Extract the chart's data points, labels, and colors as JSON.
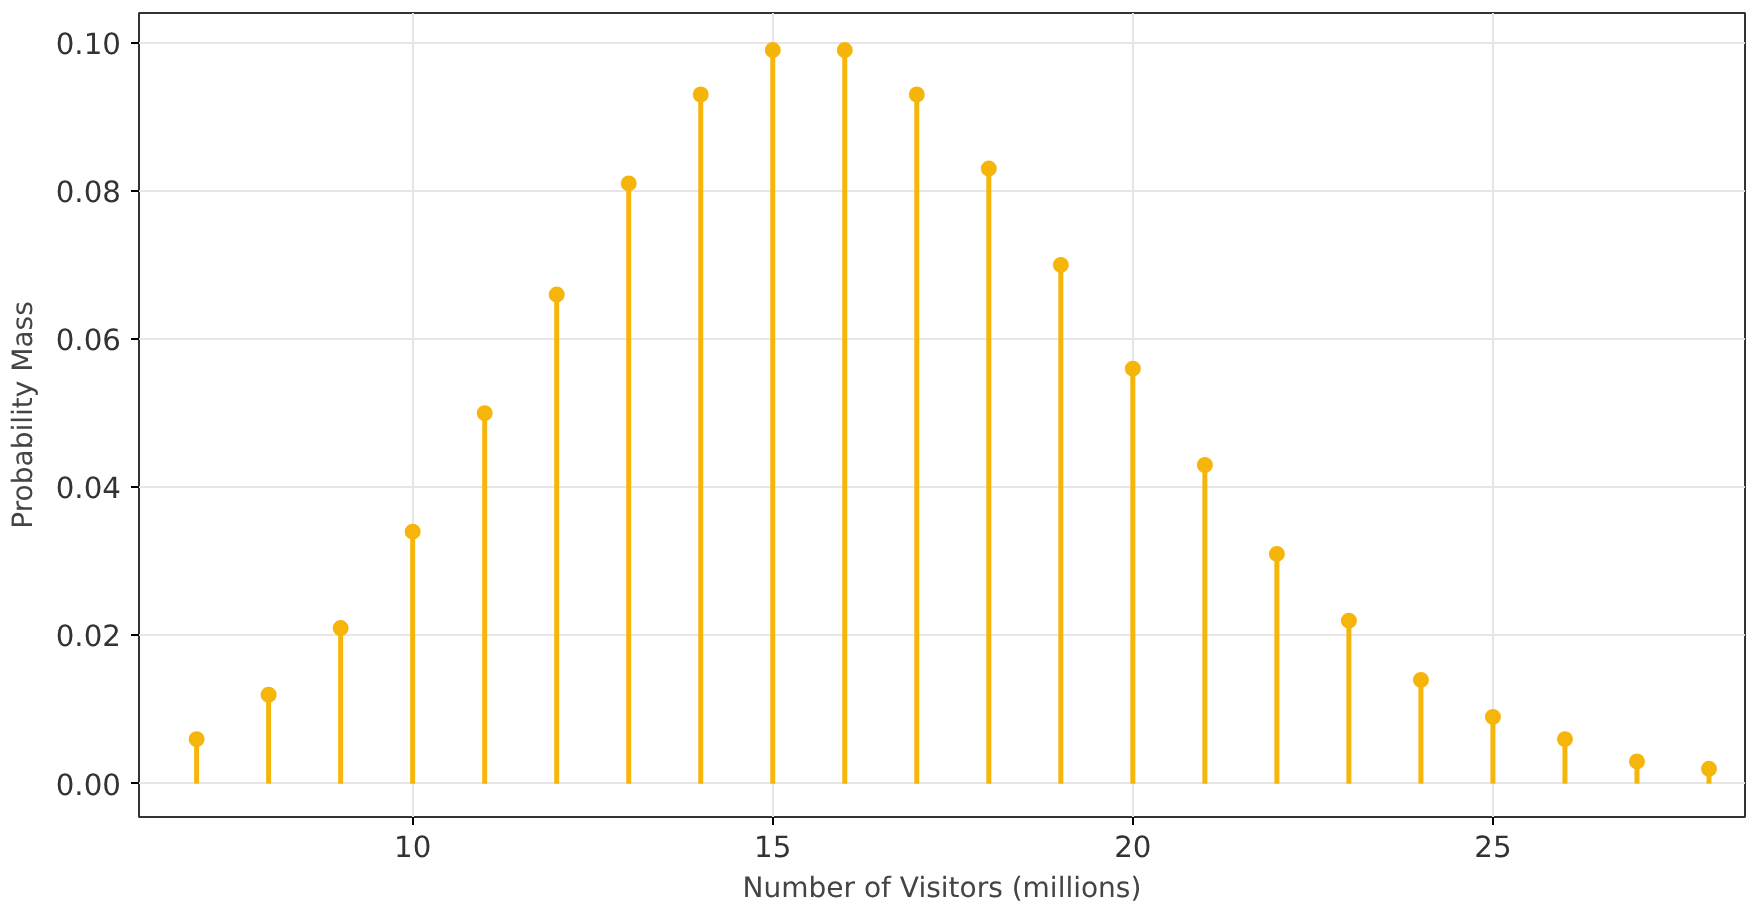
{
  "chart_data": {
    "type": "lollipop",
    "xlabel": "Number of Visitors (millions)",
    "ylabel": "Probability Mass",
    "x": [
      7,
      8,
      9,
      10,
      11,
      12,
      13,
      14,
      15,
      16,
      17,
      18,
      19,
      20,
      21,
      22,
      23,
      24,
      25,
      26,
      27,
      28
    ],
    "series": [
      {
        "color": "#f5b50a",
        "values": [
          0.006,
          0.012,
          0.021,
          0.034,
          0.05,
          0.066,
          0.081,
          0.093,
          0.099,
          0.099,
          0.093,
          0.083,
          0.07,
          0.056,
          0.043,
          0.031,
          0.022,
          0.014,
          0.009,
          0.006,
          0.003,
          0.002
        ]
      }
    ],
    "xlim": [
      6.2,
      28.5
    ],
    "ylim": [
      -0.0045,
      0.104
    ],
    "xticks": [
      10,
      15,
      20,
      25
    ],
    "yticks": [
      {
        "value": 0,
        "label": "0.00"
      },
      {
        "value": 0.02,
        "label": "0.02"
      },
      {
        "value": 0.04,
        "label": "0.04"
      },
      {
        "value": 0.06,
        "label": "0.06"
      },
      {
        "value": 0.08,
        "label": "0.08"
      },
      {
        "value": 0.1,
        "label": "0.10"
      }
    ],
    "grid": true,
    "marker": "circle"
  }
}
